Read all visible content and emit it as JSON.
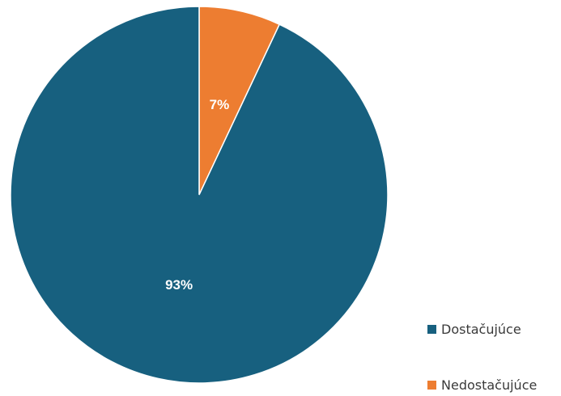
{
  "chart_data": {
    "type": "pie",
    "title": "",
    "start_angle_deg": 0,
    "direction": "clockwise",
    "slices": [
      {
        "label": "Nedostačujúce",
        "value": 7,
        "display": "7%",
        "color": "#ED7D31"
      },
      {
        "label": "Dostačujúce",
        "value": 93,
        "display": "93%",
        "color": "#17607F"
      }
    ],
    "legend": {
      "position": "bottom-right",
      "items": [
        {
          "label": "Dostačujúce",
          "color": "#17607F"
        },
        {
          "label": "Nedostačujúce",
          "color": "#ED7D31"
        }
      ]
    },
    "slice_border_color": "#ffffff"
  }
}
